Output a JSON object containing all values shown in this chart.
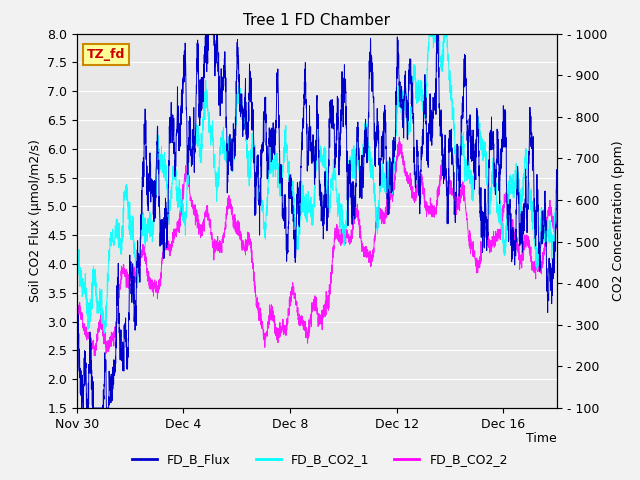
{
  "title": "Tree 1 FD Chamber",
  "xlabel": "Time",
  "ylabel_left": "Soil CO2 Flux (μmol/m2/s)",
  "ylabel_right": "CO2 Concentration (ppm)",
  "ylim_left": [
    1.5,
    8.0
  ],
  "ylim_right": [
    100,
    1000
  ],
  "yticks_left": [
    1.5,
    2.0,
    2.5,
    3.0,
    3.5,
    4.0,
    4.5,
    5.0,
    5.5,
    6.0,
    6.5,
    7.0,
    7.5,
    8.0
  ],
  "yticks_right": [
    100,
    200,
    300,
    400,
    500,
    600,
    700,
    800,
    900,
    1000
  ],
  "ytick_labels_right": [
    "- 100",
    "- 200",
    "- 300",
    "- 400",
    "- 500",
    "- 600",
    "- 700",
    "- 800",
    "- 900",
    "- 1000"
  ],
  "xtick_labels": [
    "Nov 30",
    "Dec 4",
    "Dec 8",
    "Dec 12",
    "Dec 16"
  ],
  "xtick_positions": [
    0,
    4,
    8,
    12,
    16
  ],
  "legend_entries": [
    "FD_B_Flux",
    "FD_B_CO2_1",
    "FD_B_CO2_2"
  ],
  "line_colors": [
    "#0000CD",
    "#00FFFF",
    "#FF00FF"
  ],
  "annotation_text": "TZ_fd",
  "annotation_color": "#CC0000",
  "annotation_bg": "#FFFF99",
  "annotation_border": "#CC8800",
  "plot_bg_color": "#E8E8E8",
  "fig_bg_color": "#F2F2F2",
  "grid_color": "#FFFFFF",
  "title_fontsize": 11,
  "label_fontsize": 9,
  "tick_fontsize": 9,
  "legend_fontsize": 9,
  "total_days": 18,
  "num_points": 3000
}
